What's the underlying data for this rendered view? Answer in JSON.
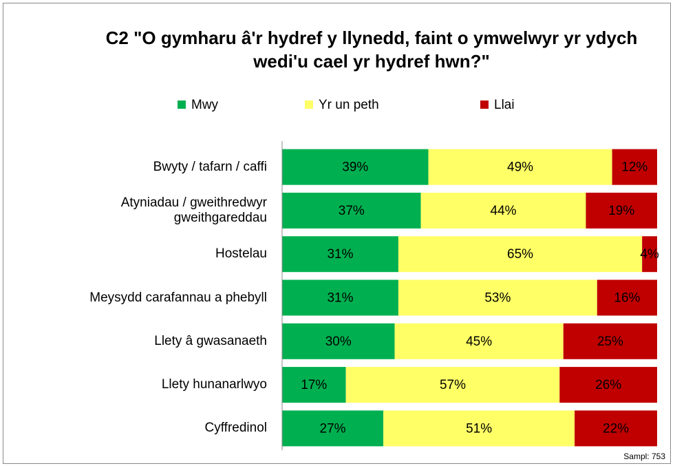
{
  "chart_data": {
    "type": "stacked_bar_horizontal",
    "title": "C2 \"O gymharu â'r hydref y llynedd, faint o ymwelwyr yr ydych wedi'u cael yr hydref hwn?\"",
    "categories": [
      "Bwyty / tafarn / caffi",
      "Atyniadau / gweithredwyr gweithgareddau",
      "Hostelau",
      "Meysydd carafannau a phebyll",
      "Llety â gwasanaeth",
      "Llety hunanarlwyo",
      "Cyffredinol"
    ],
    "series": [
      {
        "name": "Mwy",
        "color": "#00b050",
        "values": [
          39,
          37,
          31,
          31,
          30,
          17,
          27
        ],
        "value_labels": [
          "39%",
          "37%",
          "31%",
          "31%",
          "30%",
          "17%",
          "27%"
        ]
      },
      {
        "name": "Yr un peth",
        "color": "#ffff66",
        "values": [
          49,
          44,
          65,
          53,
          45,
          57,
          51
        ],
        "value_labels": [
          "49%",
          "44%",
          "65%",
          "53%",
          "45%",
          "57%",
          "51%"
        ]
      },
      {
        "name": "Llai",
        "color": "#c00000",
        "values": [
          12,
          19,
          4,
          16,
          25,
          26,
          22
        ],
        "value_labels": [
          "12%",
          "19%",
          "4%",
          "16%",
          "25%",
          "26%",
          "22%"
        ]
      }
    ],
    "xlim": [
      0,
      100
    ],
    "legend": "top",
    "annotation": "Sampl: 753"
  }
}
